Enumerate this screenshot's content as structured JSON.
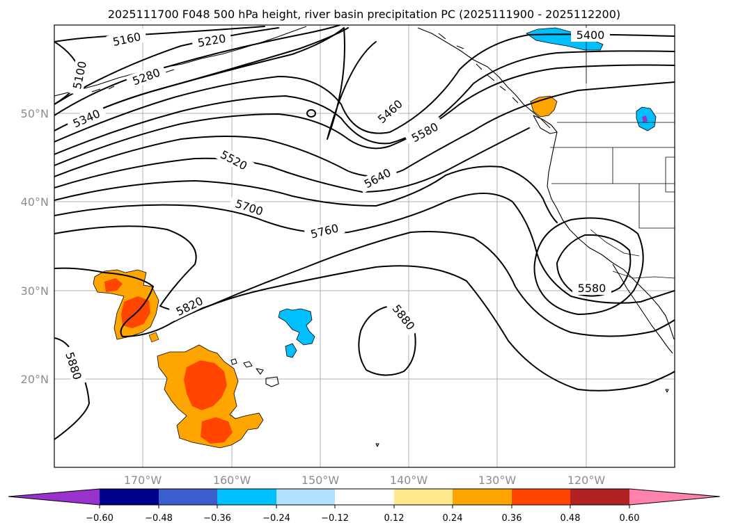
{
  "title": "2025111700 F048 500 hPa height, river basin precipitation PC (2025111900 - 2025112200)",
  "lat_labels": [
    "50°N",
    "40°N",
    "30°N",
    "20°N"
  ],
  "lon_labels": [
    "170°W",
    "160°W",
    "150°W",
    "140°W",
    "130°W",
    "120°W"
  ],
  "contour_labels": [
    "5160",
    "5220",
    "5100",
    "5280",
    "5340",
    "5400",
    "5460",
    "5580",
    "5520",
    "5640",
    "5700",
    "5760",
    "5820",
    "5880",
    "5880",
    "5580"
  ],
  "colorbar": {
    "ticks": [
      "−0.60",
      "−0.48",
      "−0.36",
      "−0.24",
      "−0.12",
      "0.12",
      "0.24",
      "0.36",
      "0.48",
      "0.60"
    ],
    "colors": [
      "#9932cc",
      "#00008b",
      "#3a5fcd",
      "#00bfff",
      "#b0e2ff",
      "#ffffff",
      "#ffe88e",
      "#ffa500",
      "#ff4500",
      "#b22222",
      "#ff82ab"
    ]
  },
  "field_colors": {
    "orange": "#ffa500",
    "red_orange": "#ff4500",
    "blue": "#00bfff",
    "purple": "#9932cc"
  }
}
